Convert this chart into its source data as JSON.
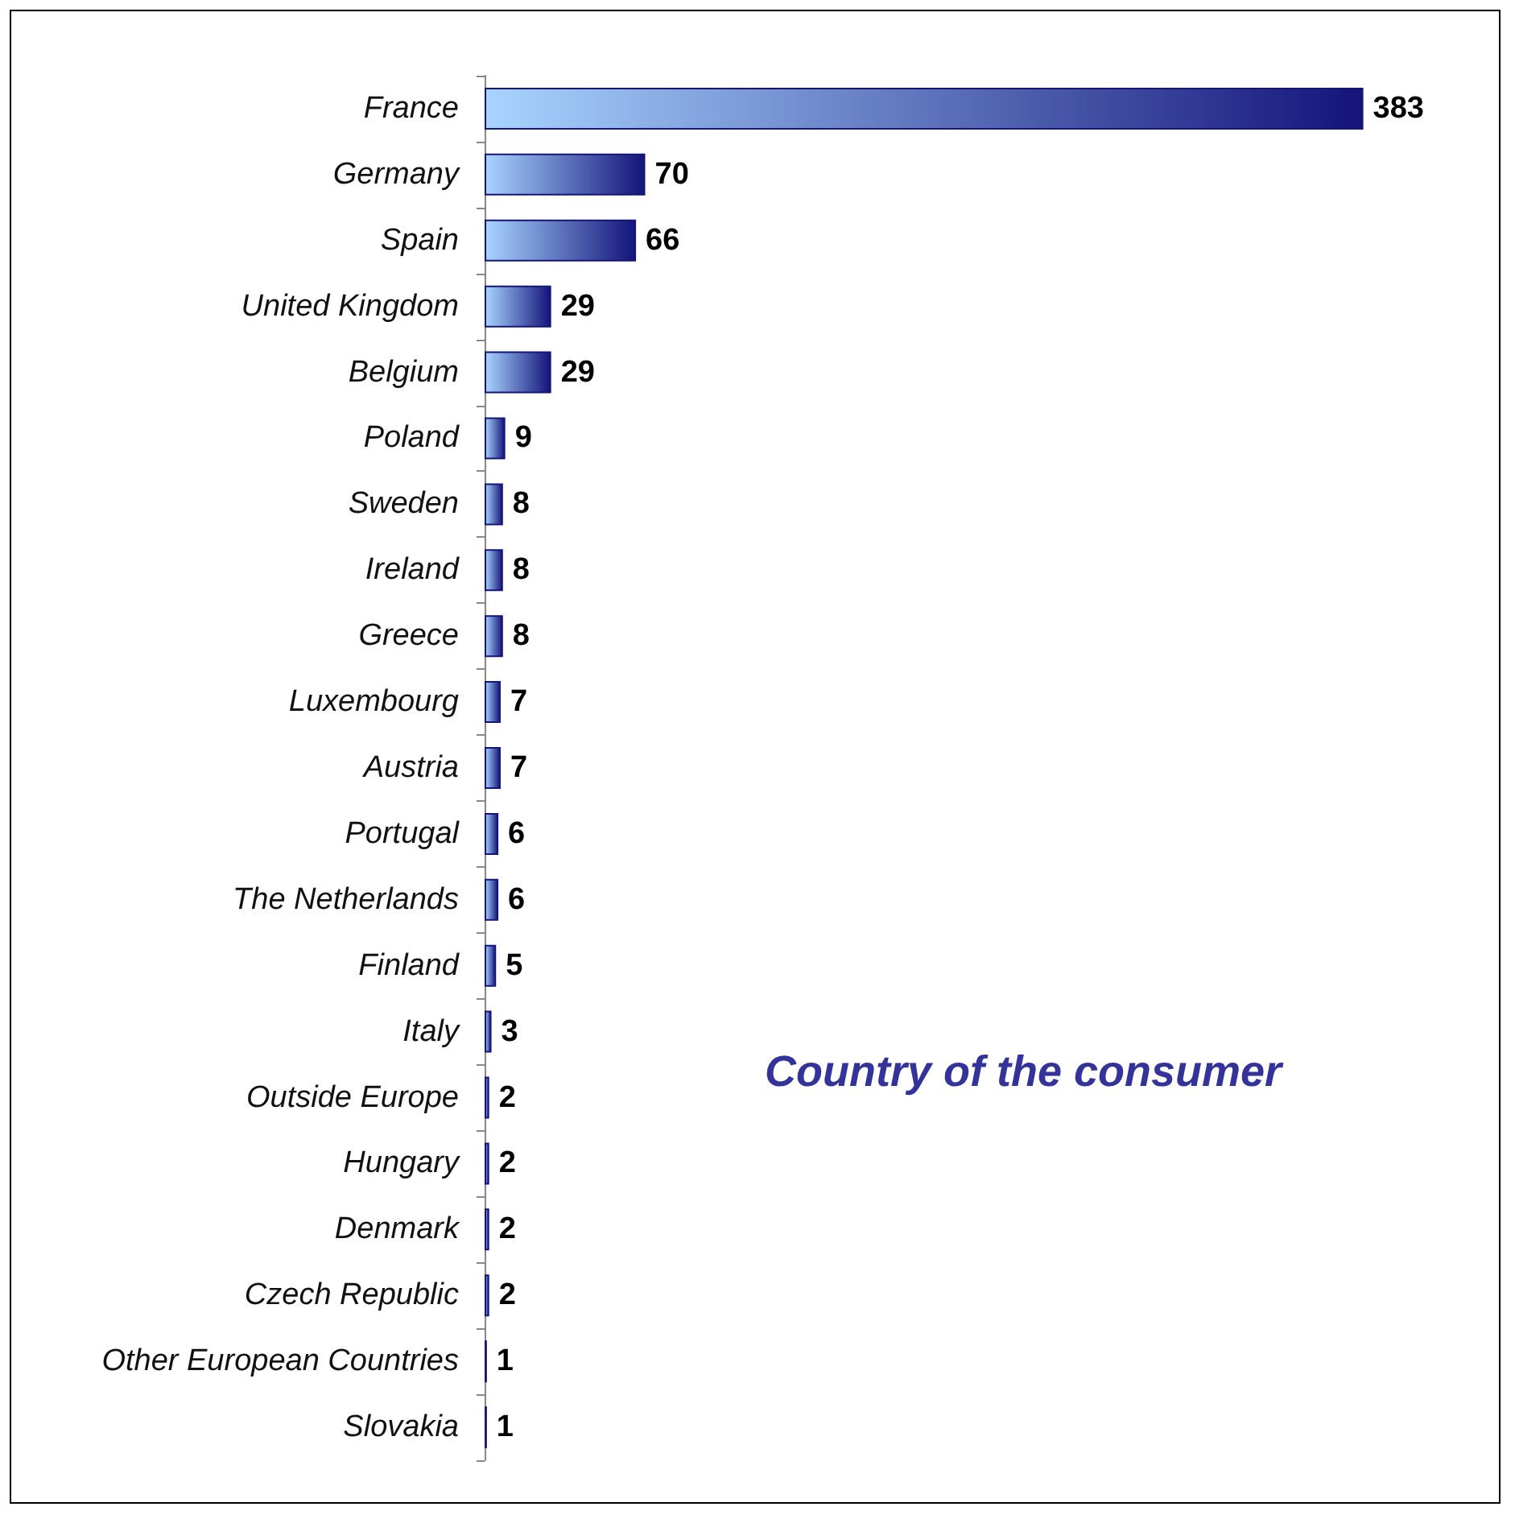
{
  "chart_data": {
    "type": "bar",
    "orientation": "horizontal",
    "title": "Country of the consumer",
    "categories": [
      "France",
      "Germany",
      "Spain",
      "United Kingdom",
      "Belgium",
      "Poland",
      "Sweden",
      "Ireland",
      "Greece",
      "Luxembourg",
      "Austria",
      "Portugal",
      "The Netherlands",
      "Finland",
      "Italy",
      "Outside Europe",
      "Hungary",
      "Denmark",
      "Czech Republic",
      "Other European Countries",
      "Slovakia"
    ],
    "values": [
      383,
      70,
      66,
      29,
      29,
      9,
      8,
      8,
      8,
      7,
      7,
      6,
      6,
      5,
      3,
      2,
      2,
      2,
      2,
      1,
      1
    ],
    "color": "#14147a",
    "data_labels": true
  }
}
